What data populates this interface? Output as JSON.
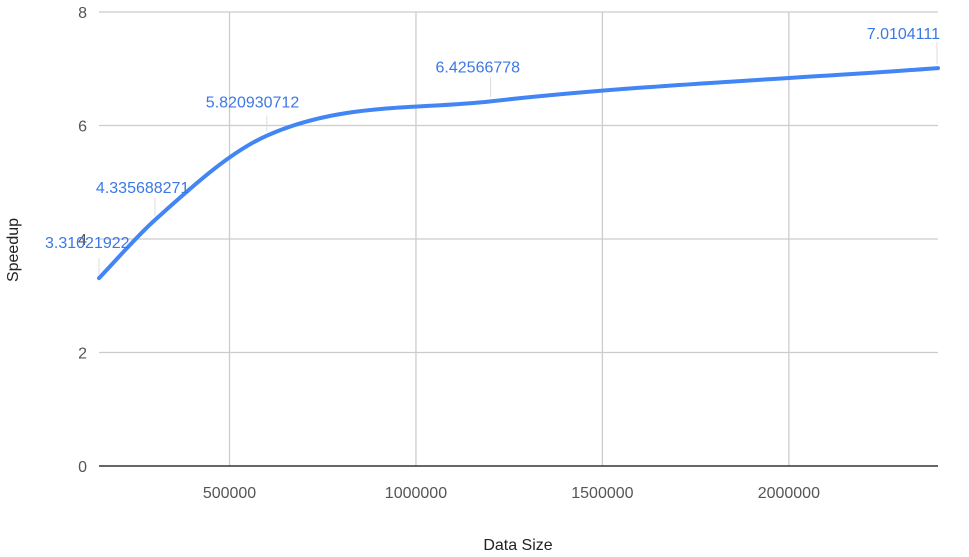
{
  "chart_data": {
    "type": "line",
    "xlabel": "Data Size",
    "ylabel": "Speedup",
    "xlim": [
      150000,
      2400000
    ],
    "ylim": [
      0,
      8
    ],
    "x_ticks": [
      500000,
      1000000,
      1500000,
      2000000
    ],
    "y_ticks": [
      0,
      2,
      4,
      6,
      8
    ],
    "grid": true,
    "legend": "none",
    "series": [
      {
        "x": [
          150000,
          300000,
          600000,
          1200000,
          2400000
        ],
        "values": [
          3.31021922,
          4.335688271,
          5.820930712,
          6.42566778,
          7.0104111
        ],
        "labels": [
          "3.31021922",
          "4.335688271",
          "5.820930712",
          "6.42566778",
          "7.0104111"
        ]
      }
    ],
    "colors": {
      "line": "#4285f4",
      "label": "#3b78e7",
      "grid": "#cccccc",
      "axis": "#333333"
    }
  }
}
